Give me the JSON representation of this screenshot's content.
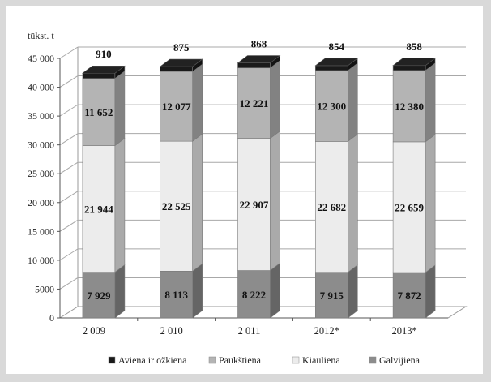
{
  "chart_data": {
    "type": "bar",
    "stacked": true,
    "three_d": true,
    "unit_label": "tūkst. t",
    "categories": [
      "2 009",
      "2 010",
      "2 011",
      "2012*",
      "2013*"
    ],
    "series": [
      {
        "name": "Galvijiena",
        "values": [
          7929,
          8113,
          8222,
          7915,
          7872
        ],
        "labels": [
          "7 929",
          "8 113",
          "8 222",
          "7 915",
          "7 872"
        ],
        "color": "#8c8c8c"
      },
      {
        "name": "Kiauliena",
        "values": [
          21944,
          22525,
          22907,
          22682,
          22659
        ],
        "labels": [
          "21 944",
          "22 525",
          "22 907",
          "22 682",
          "22 659"
        ],
        "color": "#ececec"
      },
      {
        "name": "Paukštiena",
        "values": [
          11652,
          12077,
          12221,
          12300,
          12380
        ],
        "labels": [
          "11 652",
          "12 077",
          "12 221",
          "12 300",
          "12 380"
        ],
        "color": "#b4b4b4"
      },
      {
        "name": "Aviena ir ožkiena",
        "values": [
          910,
          875,
          868,
          854,
          858
        ],
        "labels": [
          "910",
          "875",
          "868",
          "854",
          "858"
        ],
        "color": "#1a1a1a"
      }
    ],
    "legend_order": [
      "Aviena ir ožkiena",
      "Paukštiena",
      "Kiauliena",
      "Galvijiena"
    ],
    "yticks": [
      "0",
      "5000",
      "10 000",
      "15 000",
      "20 000",
      "25 000",
      "30 000",
      "35 000",
      "40 000",
      "45 000"
    ],
    "ylim": [
      0,
      45000
    ],
    "grid": true,
    "legend_position": "bottom"
  }
}
